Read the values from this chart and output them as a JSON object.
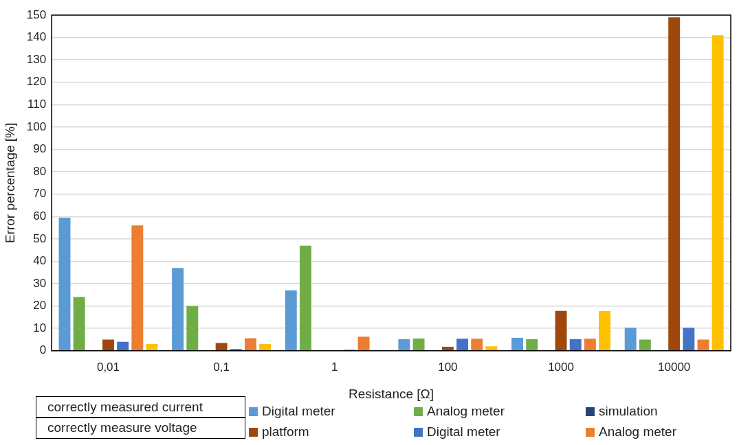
{
  "chart_data": {
    "type": "bar",
    "xlabel": "Resistance [Ω]",
    "ylabel": "Error percentage [%]",
    "categories": [
      "0,01",
      "0,1",
      "1",
      "100",
      "1000",
      "10000"
    ],
    "series": [
      {
        "name": "Digital meter",
        "color": "#5b9bd5",
        "values": [
          59.5,
          37,
          27,
          5.2,
          5.8,
          10.3
        ]
      },
      {
        "name": "Analog meter",
        "color": "#70ad47",
        "values": [
          24,
          20,
          47,
          5.5,
          5.2,
          5
        ]
      },
      {
        "name": "simulation",
        "color": "#264478",
        "values": [
          0,
          0,
          0,
          0,
          0,
          0
        ]
      },
      {
        "name": "platform",
        "color": "#9e480e",
        "values": [
          5,
          3.5,
          0,
          1.8,
          17.8,
          149
        ]
      },
      {
        "name": "Digital meter",
        "color": "#4472c4",
        "values": [
          4,
          0.8,
          0.5,
          5.4,
          5.2,
          10.3
        ]
      },
      {
        "name": "Analog meter",
        "color": "#ed7d31",
        "values": [
          56,
          5.6,
          6.3,
          5.4,
          5.4,
          5
        ]
      },
      {
        "color": "#ffc000",
        "values": [
          3,
          3,
          0,
          2,
          17.7,
          141
        ]
      }
    ],
    "ylim": [
      0,
      150
    ],
    "yticks": [
      0,
      10,
      20,
      30,
      40,
      50,
      60,
      70,
      80,
      90,
      100,
      110,
      120,
      130,
      140,
      150
    ],
    "grid": "y",
    "legend": "bottom",
    "annotations": [
      "correctly measured current",
      "correctly measure voltage"
    ]
  }
}
